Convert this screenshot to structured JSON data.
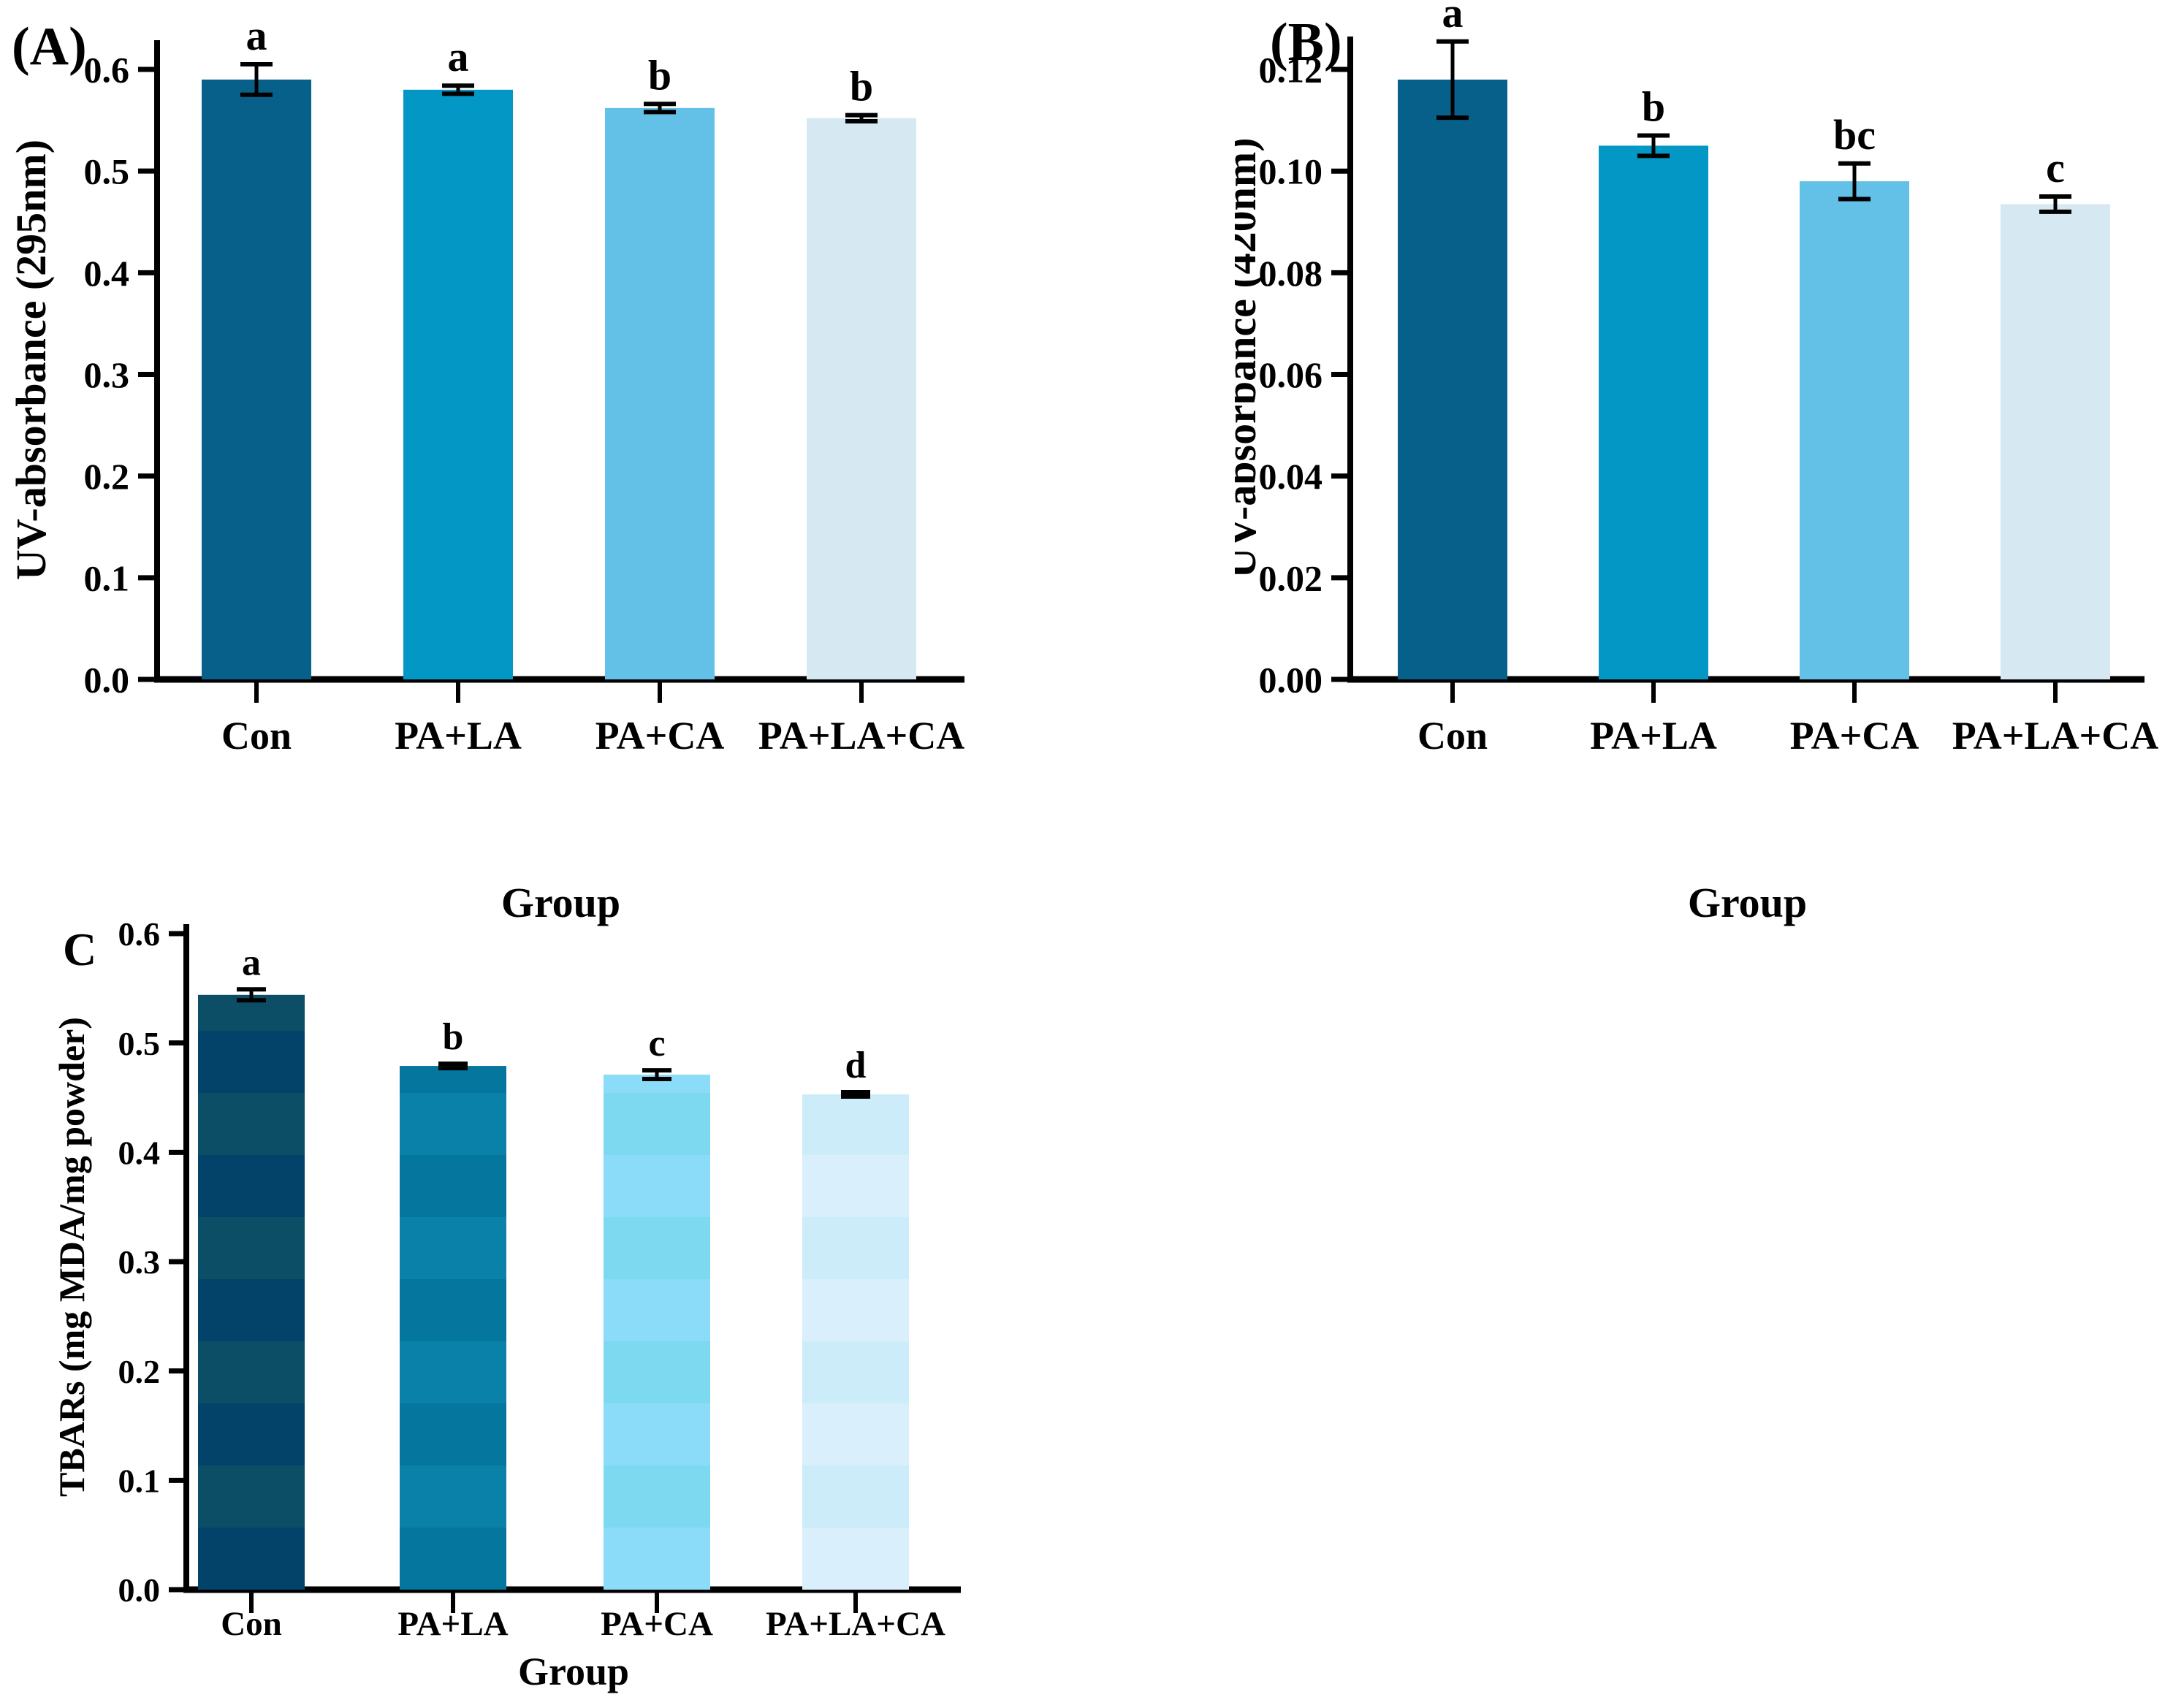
{
  "figure_title": "",
  "chart_data": [
    {
      "id": "A",
      "type": "bar",
      "panel_label": "(A)",
      "title": "",
      "xlabel": "Group",
      "ylabel": "UV-absorbance (295nm)",
      "categories": [
        "Con",
        "PA+LA",
        "PA+CA",
        "PA+LA+CA"
      ],
      "values": [
        0.59,
        0.58,
        0.562,
        0.552
      ],
      "errors": [
        0.015,
        0.004,
        0.004,
        0.003
      ],
      "significance_letters": [
        "a",
        "a",
        "b",
        "b"
      ],
      "ytick_labels": [
        "0.0",
        "0.1",
        "0.2",
        "0.3",
        "0.4",
        "0.5",
        "0.6"
      ],
      "ylim": [
        0,
        0.6
      ],
      "grid": false,
      "legend": null,
      "bar_colors": [
        "#06608a",
        "#0397c5",
        "#63c1e8",
        "#d6e9f2"
      ]
    },
    {
      "id": "B",
      "type": "bar",
      "panel_label": "(B)",
      "title": "",
      "xlabel": "Group",
      "ylabel": "UV-absorbance (420nm)",
      "categories": [
        "Con",
        "PA+LA",
        "PA+CA",
        "PA+LA+CA"
      ],
      "values": [
        0.118,
        0.105,
        0.098,
        0.0935
      ],
      "errors": [
        0.0075,
        0.002,
        0.0035,
        0.0015
      ],
      "significance_letters": [
        "a",
        "b",
        "bc",
        "c"
      ],
      "ytick_labels": [
        "0.00",
        "0.02",
        "0.04",
        "0.06",
        "0.08",
        "0.10",
        "0.12"
      ],
      "ylim": [
        0,
        0.12
      ],
      "grid": false,
      "legend": null,
      "bar_colors": [
        "#06608a",
        "#0397c5",
        "#63c1e8",
        "#d6e9f2"
      ]
    },
    {
      "id": "C",
      "type": "bar",
      "panel_label": "C",
      "title": "",
      "xlabel": "Group",
      "ylabel": "TBARs (mg MDA/mg powder)",
      "categories": [
        "Con",
        "PA+LA",
        "PA+CA",
        "PA+LA+CA"
      ],
      "values": [
        0.544,
        0.479,
        0.471,
        0.453
      ],
      "errors": [
        0.005,
        0.002,
        0.004,
        0.002
      ],
      "significance_letters": [
        "a",
        "b",
        "c",
        "d"
      ],
      "ytick_labels": [
        "0.0",
        "0.1",
        "0.2",
        "0.3",
        "0.4",
        "0.5",
        "0.6"
      ],
      "ylim": [
        0,
        0.6
      ],
      "grid": false,
      "legend": null,
      "bar_colors": [
        "#044369",
        "#05769d",
        "#8adcf8",
        "#daeffc"
      ],
      "bar_band_colors": [
        "#0b4e66",
        "#0a81a8",
        "#7cd9f0",
        "#ccecf9"
      ]
    }
  ],
  "colors": {
    "axis": "#000000",
    "error_bar": "#000000",
    "background": "#ffffff",
    "text": "#000000"
  }
}
